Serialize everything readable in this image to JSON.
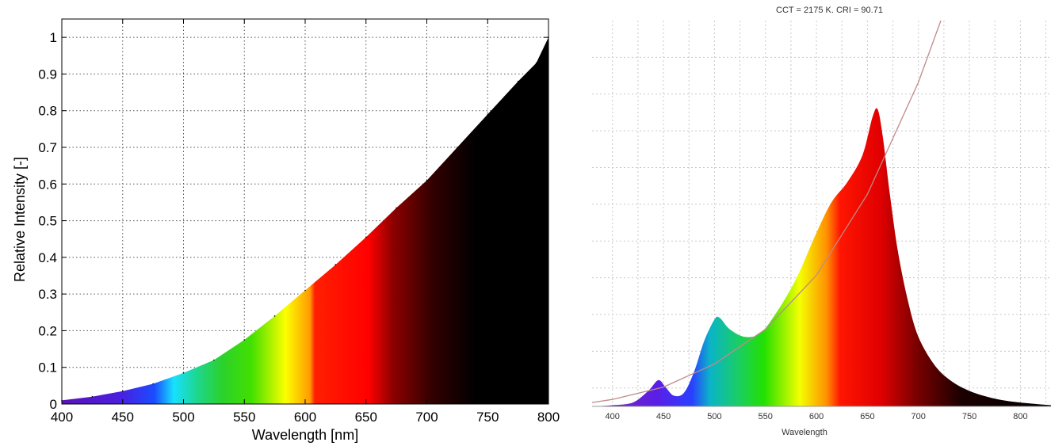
{
  "chart_data": [
    {
      "type": "area",
      "title": "",
      "xlabel": "Wavelength [nm]",
      "ylabel": "Relative Intensity [-]",
      "xlim": [
        400,
        800
      ],
      "ylim": [
        0,
        1.05
      ],
      "grid": true,
      "fill": "spectral-gradient",
      "xticks": [
        400,
        450,
        500,
        550,
        600,
        650,
        700,
        750,
        800
      ],
      "yticks": [
        0,
        0.1,
        0.2,
        0.3,
        0.4,
        0.5,
        0.6,
        0.7,
        0.8,
        0.9,
        1
      ],
      "xtick_labels": [
        "400",
        "450",
        "500",
        "550",
        "600",
        "650",
        "700",
        "750",
        "800"
      ],
      "ytick_labels": [
        "0",
        "0.1",
        "0.2",
        "0.3",
        "0.4",
        "0.5",
        "0.6",
        "0.7",
        "0.8",
        "0.9",
        "1"
      ],
      "x": [
        400,
        425,
        450,
        475,
        500,
        525,
        550,
        575,
        600,
        625,
        650,
        675,
        700,
        725,
        750,
        775,
        790,
        800
      ],
      "y": [
        0.01,
        0.02,
        0.035,
        0.055,
        0.085,
        0.12,
        0.175,
        0.24,
        0.31,
        0.38,
        0.455,
        0.535,
        0.61,
        0.7,
        0.79,
        0.88,
        0.93,
        1.0
      ]
    },
    {
      "type": "area",
      "title": "CCT = 2175 K. CRI = 90.71",
      "xlabel": "Wavelength",
      "ylabel": "",
      "xlim": [
        380,
        830
      ],
      "grid": true,
      "fill": "spectral-gradient",
      "xticks": [
        400,
        450,
        500,
        550,
        600,
        650,
        700,
        750,
        800
      ],
      "xtick_labels": [
        "400",
        "450",
        "500",
        "550",
        "600",
        "650",
        "700",
        "750",
        "800"
      ],
      "ylim": [
        0,
        1.0
      ],
      "x": [
        380,
        400,
        420,
        435,
        445,
        452,
        460,
        470,
        480,
        490,
        500,
        505,
        515,
        530,
        545,
        560,
        580,
        600,
        615,
        630,
        645,
        655,
        660,
        665,
        672,
        680,
        690,
        700,
        715,
        730,
        750,
        775,
        800,
        830
      ],
      "y": [
        0.0,
        0.003,
        0.01,
        0.04,
        0.068,
        0.05,
        0.028,
        0.035,
        0.09,
        0.17,
        0.225,
        0.23,
        0.2,
        0.18,
        0.19,
        0.24,
        0.33,
        0.45,
        0.53,
        0.58,
        0.65,
        0.75,
        0.77,
        0.7,
        0.55,
        0.4,
        0.27,
        0.18,
        0.11,
        0.07,
        0.04,
        0.02,
        0.01,
        0.003
      ],
      "reference_curve": {
        "x": [
          380,
          400,
          450,
          500,
          550,
          600,
          650,
          700,
          722
        ],
        "y": [
          0.01,
          0.018,
          0.05,
          0.11,
          0.2,
          0.34,
          0.55,
          0.84,
          1.0
        ]
      }
    }
  ]
}
